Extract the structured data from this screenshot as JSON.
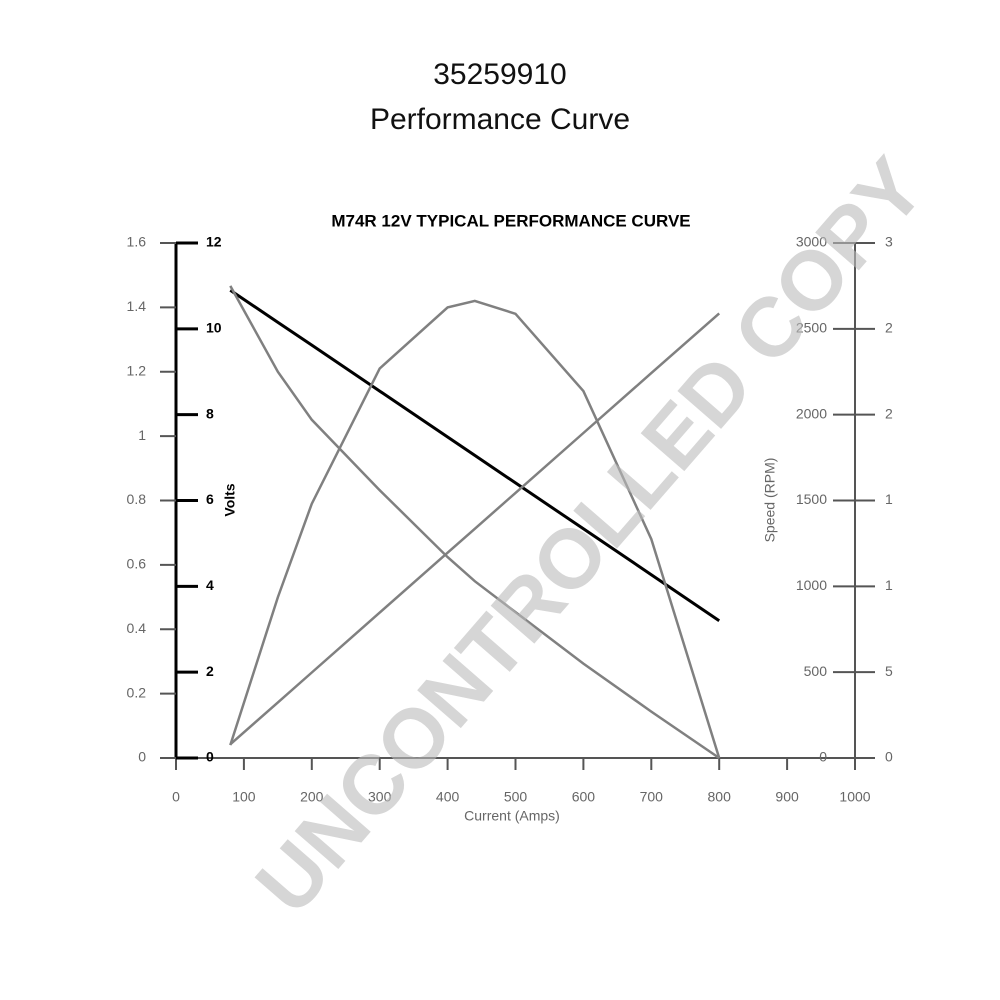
{
  "header": {
    "title": "35259910",
    "subtitle": "Performance Curve"
  },
  "watermark": "UNCONTROLLED COPY",
  "chart_data": {
    "type": "line",
    "title": "M74R 12V TYPICAL PERFORMANCE CURVE",
    "x_label": "Current (Amps)",
    "xlim": [
      0,
      1000
    ],
    "xticks": [
      0,
      100,
      200,
      300,
      400,
      500,
      600,
      700,
      800,
      900,
      1000
    ],
    "ylim": [
      0,
      1.6
    ],
    "yticks": [
      0,
      0.2,
      0.4,
      0.6,
      0.8,
      1,
      1.2,
      1.4,
      1.6
    ],
    "y2_label": "Volts",
    "y2lim": [
      0,
      12
    ],
    "y2ticks": [
      0,
      2,
      4,
      6,
      8,
      10,
      12
    ],
    "y3_label": "Speed (RPM)",
    "y3lim": [
      0,
      3000
    ],
    "y3ticks": [
      0,
      500,
      1000,
      1500,
      2000,
      2500,
      3000
    ],
    "y4lim": [
      0,
      30
    ],
    "y4ticks": [
      {
        "value": 0,
        "label": "0"
      },
      {
        "value": 5,
        "label": "5"
      },
      {
        "value": 10,
        "label": "1"
      },
      {
        "value": 15,
        "label": "1"
      },
      {
        "value": 20,
        "label": "2"
      },
      {
        "value": 25,
        "label": "2"
      },
      {
        "value": 30,
        "label": "3"
      }
    ],
    "x": [
      80,
      150,
      200,
      300,
      400,
      440,
      500,
      600,
      700,
      800
    ],
    "series": [
      {
        "color": "#000000",
        "axis": "y2",
        "values": [
          10.9,
          10.15,
          9.62,
          8.55,
          7.48,
          7.05,
          6.41,
          5.34,
          4.27,
          3.2
        ]
      },
      {
        "color": "#808080",
        "axis": "y3",
        "values": [
          2750,
          2250,
          1970,
          1560,
          1170,
          1030,
          850,
          550,
          270,
          0
        ]
      },
      {
        "color": "#808080",
        "axis": "y",
        "values": [
          0.04,
          0.5,
          0.79,
          1.21,
          1.4,
          1.42,
          1.38,
          1.14,
          0.68,
          0
        ]
      },
      {
        "color": "#808080",
        "axis": "y4",
        "values": [
          0.8,
          3.24,
          4.98,
          8.47,
          11.96,
          13.35,
          15.44,
          18.93,
          22.42,
          25.9
        ]
      }
    ]
  }
}
